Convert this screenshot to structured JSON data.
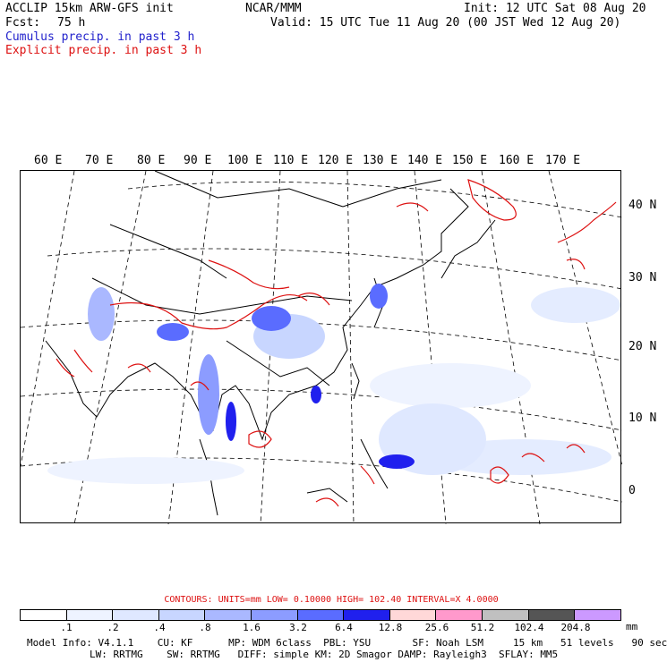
{
  "header": {
    "title": "ACCLIP 15km ARW-GFS init",
    "org": "NCAR/MMM",
    "init": "Init: 12 UTC Sat 08 Aug 20",
    "fcst_label": "Fcst:",
    "fcst_value": "75 h",
    "valid": "Valid: 15 UTC Tue 11 Aug 20 (00 JST Wed 12 Aug 20)",
    "cumulus": "Cumulus precip. in past 3 h",
    "explicit": "Explicit precip. in past 3 h"
  },
  "map": {
    "lon_labels": [
      "60 E",
      "70 E",
      "80 E",
      "90 E",
      "100 E",
      "110 E",
      "120 E",
      "130 E",
      "140 E",
      "150 E",
      "160 E",
      "170 E"
    ],
    "lat_labels": [
      "40 N",
      "30 N",
      "20 N",
      "10 N",
      "0"
    ]
  },
  "contours_line": "CONTOURS:  UNITS=mm  LOW= 0.10000      HIGH=  102.40      INTERVAL=X  4.0000",
  "scale": {
    "colors": [
      "#ffffff",
      "#eef3ff",
      "#dfe8ff",
      "#c8d6ff",
      "#aab8ff",
      "#8c9cff",
      "#5a6cff",
      "#2020ee",
      "#ffd8d8",
      "#ff99cc",
      "#c0c0c0",
      "#555555",
      "#cc99ff"
    ],
    "ticks": [
      ".1",
      ".2",
      ".4",
      ".8",
      "1.6",
      "3.2",
      "6.4",
      "12.8",
      "25.6",
      "51.2",
      "102.4",
      "204.8"
    ],
    "units": "mm"
  },
  "footer": {
    "line1": "Model Info: V4.1.1    CU: KF      MP: WDM 6class  PBL: YSU       SF: Noah LSM     15 km   51 levels   90 sec",
    "line2": "LW: RRTMG    SW: RRTMG   DIFF: simple KM: 2D Smagor DAMP: Rayleigh3  SFLAY: MM5"
  }
}
